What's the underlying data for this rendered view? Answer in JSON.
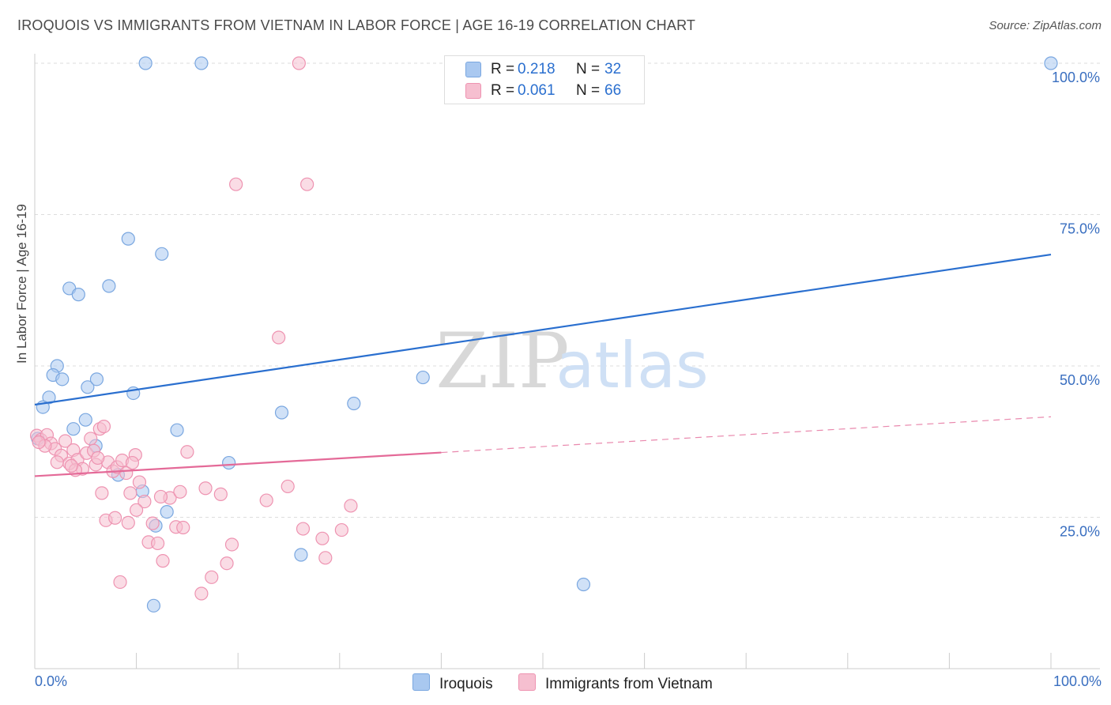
{
  "title": "IROQUOIS VS IMMIGRANTS FROM VIETNAM IN LABOR FORCE | AGE 16-19 CORRELATION CHART",
  "source": "Source: ZipAtlas.com",
  "watermark": {
    "zip": "ZIP",
    "atlas": "atlas"
  },
  "colors": {
    "blue_fill": "#a9c8f0",
    "blue_stroke": "#7aa7e0",
    "blue_line": "#2a6fcf",
    "pink_fill": "#f6bfd0",
    "pink_stroke": "#ee93b1",
    "pink_line": "#e46a98",
    "axis_text": "#3a6fc0",
    "grid": "#dddddd"
  },
  "legend_top": [
    {
      "r_label": "R =",
      "r_value": "0.218",
      "n_label": "N =",
      "n_value": "32"
    },
    {
      "r_label": "R =",
      "r_value": "0.061",
      "n_label": "N =",
      "n_value": "66"
    }
  ],
  "legend_bottom": [
    {
      "label": "Iroquois"
    },
    {
      "label": "Immigrants from Vietnam"
    }
  ],
  "x_tick_labels": {
    "left": "0.0%",
    "right": "100.0%"
  },
  "chart_data": {
    "type": "scatter",
    "title": "IROQUOIS VS IMMIGRANTS FROM VIETNAM IN LABOR FORCE | AGE 16-19 CORRELATION CHART",
    "xlabel": "",
    "ylabel": "In Labor Force | Age 16-19",
    "xlim": [
      0,
      100
    ],
    "ylim": [
      0,
      100
    ],
    "y_ticks": [
      {
        "value": 25,
        "label": "25.0%"
      },
      {
        "value": 50,
        "label": "50.0%"
      },
      {
        "value": 75,
        "label": "75.0%"
      },
      {
        "value": 100,
        "label": "100.0%"
      }
    ],
    "grid": true,
    "legend": "top-center",
    "series": [
      {
        "name": "Iroquois",
        "color": "#a9c8f0",
        "trend": {
          "x": [
            0,
            100
          ],
          "y": [
            43.6,
            68.4
          ],
          "style": "solid"
        },
        "points": [
          [
            10.9,
            100
          ],
          [
            16.4,
            100
          ],
          [
            100,
            100
          ],
          [
            9.2,
            71
          ],
          [
            12.5,
            68.5
          ],
          [
            3.4,
            62.8
          ],
          [
            4.3,
            61.8
          ],
          [
            7.3,
            63.2
          ],
          [
            2.2,
            50
          ],
          [
            1.8,
            48.5
          ],
          [
            2.7,
            47.8
          ],
          [
            5.2,
            46.5
          ],
          [
            6.1,
            47.8
          ],
          [
            9.7,
            45.5
          ],
          [
            1.4,
            44.8
          ],
          [
            0.8,
            43.2
          ],
          [
            38.2,
            48.1
          ],
          [
            24.3,
            42.3
          ],
          [
            31.4,
            43.8
          ],
          [
            5.0,
            41.1
          ],
          [
            3.8,
            39.6
          ],
          [
            14.0,
            39.4
          ],
          [
            6.0,
            36.8
          ],
          [
            19.1,
            34.0
          ],
          [
            8.2,
            32.0
          ],
          [
            10.6,
            29.3
          ],
          [
            11.9,
            23.6
          ],
          [
            13.0,
            25.9
          ],
          [
            26.2,
            18.8
          ],
          [
            54.0,
            13.9
          ],
          [
            11.7,
            10.4
          ],
          [
            0.3,
            38.0
          ]
        ]
      },
      {
        "name": "Immigrants from Vietnam",
        "color": "#f6bfd0",
        "trend": {
          "x": [
            0,
            40
          ],
          "y": [
            31.8,
            35.7
          ],
          "style": "solid",
          "extended_x": [
            40,
            100
          ],
          "extended_y": [
            35.7,
            41.6
          ],
          "extended_style": "dashed"
        },
        "points": [
          [
            0.2,
            38.5
          ],
          [
            0.6,
            37.8
          ],
          [
            1.2,
            38.6
          ],
          [
            1.6,
            37.2
          ],
          [
            2.0,
            36.3
          ],
          [
            2.6,
            35.2
          ],
          [
            3.0,
            37.6
          ],
          [
            3.4,
            33.9
          ],
          [
            3.8,
            36.1
          ],
          [
            4.2,
            34.5
          ],
          [
            4.7,
            33.0
          ],
          [
            5.1,
            35.6
          ],
          [
            5.5,
            38.0
          ],
          [
            6.0,
            33.7
          ],
          [
            6.4,
            39.6
          ],
          [
            6.8,
            40.0
          ],
          [
            7.2,
            34.1
          ],
          [
            7.7,
            32.6
          ],
          [
            8.1,
            33.3
          ],
          [
            8.6,
            34.4
          ],
          [
            9.0,
            32.3
          ],
          [
            9.4,
            29.0
          ],
          [
            9.9,
            35.3
          ],
          [
            10.3,
            30.8
          ],
          [
            10.8,
            27.6
          ],
          [
            11.2,
            20.9
          ],
          [
            11.6,
            24.0
          ],
          [
            12.1,
            20.7
          ],
          [
            12.6,
            17.8
          ],
          [
            13.3,
            28.2
          ],
          [
            13.9,
            23.4
          ],
          [
            14.3,
            29.2
          ],
          [
            15.0,
            35.8
          ],
          [
            16.4,
            12.4
          ],
          [
            16.8,
            29.8
          ],
          [
            17.4,
            15.1
          ],
          [
            18.3,
            28.8
          ],
          [
            18.9,
            17.4
          ],
          [
            19.4,
            20.5
          ],
          [
            19.8,
            80
          ],
          [
            22.8,
            27.8
          ],
          [
            24.0,
            54.7
          ],
          [
            24.9,
            30.1
          ],
          [
            26.0,
            100
          ],
          [
            26.8,
            80
          ],
          [
            26.4,
            23.1
          ],
          [
            28.3,
            21.5
          ],
          [
            28.6,
            18.3
          ],
          [
            30.2,
            22.9
          ],
          [
            31.1,
            26.9
          ],
          [
            6.6,
            29.0
          ],
          [
            7.0,
            24.5
          ],
          [
            7.9,
            24.9
          ],
          [
            8.4,
            14.3
          ],
          [
            9.2,
            24.1
          ],
          [
            10.0,
            26.2
          ],
          [
            12.4,
            28.4
          ],
          [
            14.6,
            23.3
          ],
          [
            2.2,
            34.1
          ],
          [
            4.0,
            32.8
          ],
          [
            5.8,
            36.0
          ],
          [
            1.0,
            36.8
          ],
          [
            0.4,
            37.4
          ],
          [
            3.6,
            33.5
          ],
          [
            6.2,
            34.8
          ],
          [
            9.6,
            34.0
          ]
        ]
      }
    ]
  }
}
